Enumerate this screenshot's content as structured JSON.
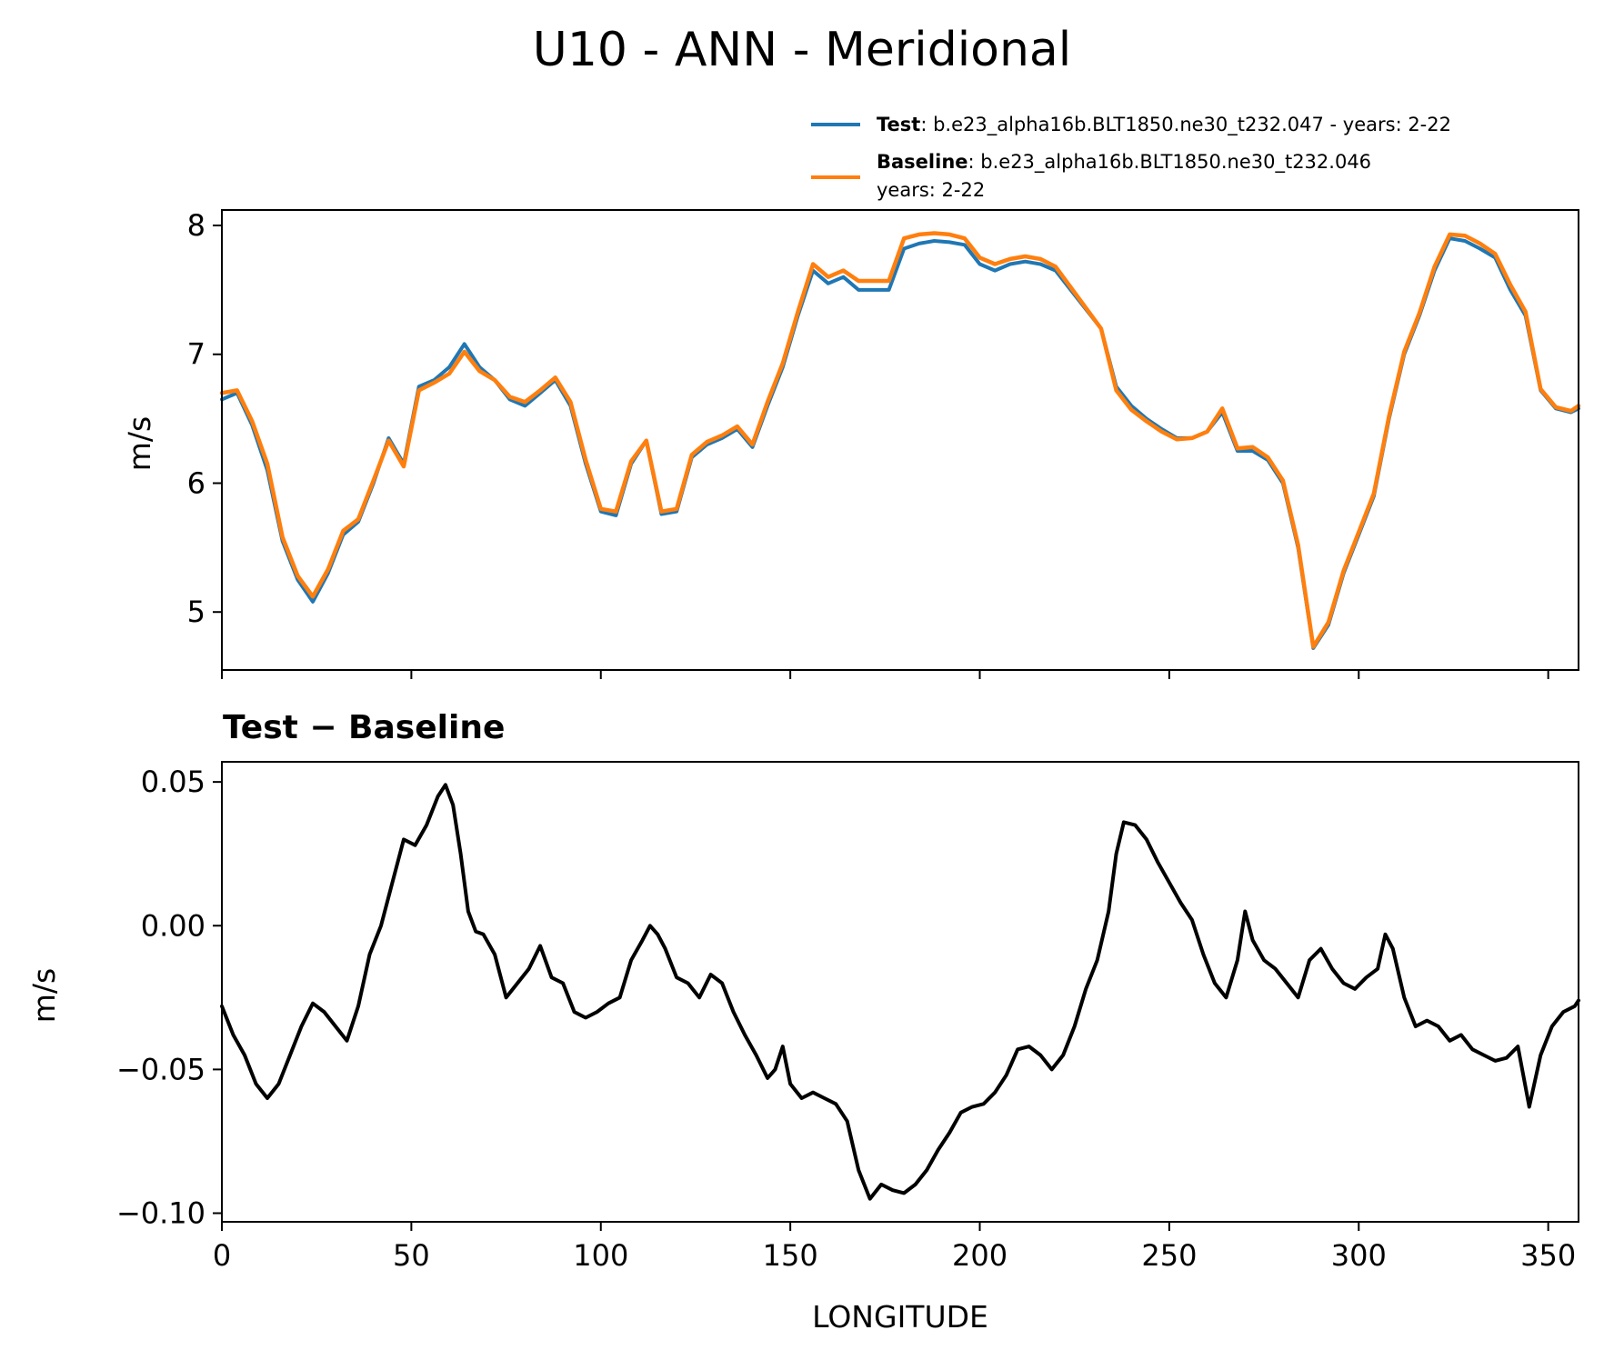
{
  "figure": {
    "title": "U10 - ANN - Meridional"
  },
  "legend": {
    "entries": [
      {
        "bold": "Test",
        "text": ": b.e23_alpha16b.BLT1850.ne30_t232.047 - years: 2-22",
        "line2": "",
        "color": "#1f77b4"
      },
      {
        "bold": "Baseline",
        "text": ": b.e23_alpha16b.BLT1850.ne30_t232.046",
        "line2": "years: 2-22",
        "color": "#ff7f0e"
      }
    ]
  },
  "chart_data": [
    {
      "type": "line",
      "title": "",
      "xlabel": "",
      "ylabel": "m/s",
      "xlim": [
        0,
        358
      ],
      "ylim": [
        4.55,
        8.12
      ],
      "xticks": [
        0,
        50,
        100,
        150,
        200,
        250,
        300,
        350
      ],
      "yticks": [
        5,
        6,
        7,
        8
      ],
      "ytick_labels": [
        "5",
        "6",
        "7",
        "8"
      ],
      "grid": false,
      "series": [
        {
          "name": "Test",
          "color": "#1f77b4",
          "x": [
            0,
            4,
            8,
            12,
            16,
            20,
            24,
            28,
            32,
            36,
            40,
            44,
            48,
            52,
            56,
            60,
            64,
            68,
            72,
            76,
            80,
            84,
            88,
            92,
            96,
            100,
            104,
            108,
            112,
            116,
            120,
            124,
            128,
            132,
            136,
            140,
            144,
            148,
            152,
            156,
            160,
            164,
            168,
            172,
            176,
            180,
            184,
            188,
            192,
            196,
            200,
            204,
            208,
            212,
            216,
            220,
            224,
            228,
            232,
            236,
            240,
            244,
            248,
            252,
            256,
            260,
            264,
            268,
            272,
            276,
            280,
            284,
            288,
            292,
            296,
            300,
            304,
            308,
            312,
            316,
            320,
            324,
            328,
            332,
            336,
            340,
            344,
            348,
            352,
            356,
            358
          ],
          "y": [
            6.65,
            6.7,
            6.45,
            6.1,
            5.55,
            5.25,
            5.08,
            5.3,
            5.6,
            5.7,
            6.0,
            6.35,
            6.15,
            6.75,
            6.8,
            6.9,
            7.08,
            6.9,
            6.8,
            6.65,
            6.6,
            6.7,
            6.8,
            6.6,
            6.15,
            5.78,
            5.75,
            6.15,
            6.33,
            5.76,
            5.78,
            6.2,
            6.3,
            6.35,
            6.42,
            6.28,
            6.6,
            6.9,
            7.3,
            7.65,
            7.55,
            7.6,
            7.5,
            7.5,
            7.5,
            7.82,
            7.86,
            7.88,
            7.87,
            7.85,
            7.7,
            7.65,
            7.7,
            7.72,
            7.7,
            7.65,
            7.5,
            7.35,
            7.2,
            6.75,
            6.6,
            6.5,
            6.42,
            6.35,
            6.35,
            6.4,
            6.55,
            6.25,
            6.25,
            6.18,
            6.0,
            5.5,
            4.72,
            4.9,
            5.3,
            5.6,
            5.9,
            6.5,
            7.0,
            7.3,
            7.65,
            7.9,
            7.88,
            7.82,
            7.75,
            7.5,
            7.3,
            6.72,
            6.58,
            6.55,
            6.58
          ]
        },
        {
          "name": "Baseline",
          "color": "#ff7f0e",
          "x": [
            0,
            4,
            8,
            12,
            16,
            20,
            24,
            28,
            32,
            36,
            40,
            44,
            48,
            52,
            56,
            60,
            64,
            68,
            72,
            76,
            80,
            84,
            88,
            92,
            96,
            100,
            104,
            108,
            112,
            116,
            120,
            124,
            128,
            132,
            136,
            140,
            144,
            148,
            152,
            156,
            160,
            164,
            168,
            172,
            176,
            180,
            184,
            188,
            192,
            196,
            200,
            204,
            208,
            212,
            216,
            220,
            224,
            228,
            232,
            236,
            240,
            244,
            248,
            252,
            256,
            260,
            264,
            268,
            272,
            276,
            280,
            284,
            288,
            292,
            296,
            300,
            304,
            308,
            312,
            316,
            320,
            324,
            328,
            332,
            336,
            340,
            344,
            348,
            352,
            356,
            358
          ],
          "y": [
            6.7,
            6.72,
            6.48,
            6.15,
            5.58,
            5.28,
            5.12,
            5.33,
            5.63,
            5.72,
            6.02,
            6.33,
            6.13,
            6.72,
            6.78,
            6.85,
            7.02,
            6.87,
            6.8,
            6.67,
            6.63,
            6.72,
            6.82,
            6.63,
            6.18,
            5.8,
            5.78,
            6.17,
            6.33,
            5.78,
            5.8,
            6.22,
            6.32,
            6.37,
            6.44,
            6.3,
            6.63,
            6.93,
            7.33,
            7.7,
            7.6,
            7.65,
            7.57,
            7.57,
            7.57,
            7.9,
            7.93,
            7.94,
            7.93,
            7.9,
            7.75,
            7.7,
            7.74,
            7.76,
            7.74,
            7.68,
            7.52,
            7.36,
            7.2,
            6.72,
            6.57,
            6.48,
            6.4,
            6.34,
            6.35,
            6.4,
            6.58,
            6.27,
            6.28,
            6.2,
            6.02,
            5.52,
            4.73,
            4.92,
            5.32,
            5.62,
            5.92,
            6.52,
            7.02,
            7.32,
            7.68,
            7.93,
            7.92,
            7.86,
            7.78,
            7.54,
            7.33,
            6.73,
            6.59,
            6.56,
            6.6
          ]
        }
      ]
    },
    {
      "type": "line",
      "title": "Test − Baseline",
      "xlabel": "LONGITUDE",
      "ylabel": "m/s",
      "xlim": [
        0,
        358
      ],
      "ylim": [
        -0.103,
        0.057
      ],
      "xticks": [
        0,
        50,
        100,
        150,
        200,
        250,
        300,
        350
      ],
      "yticks": [
        0.05,
        0.0,
        -0.05,
        -0.1
      ],
      "ytick_labels": [
        "0.05",
        "0.00",
        "−0.05",
        "−0.10"
      ],
      "grid": false,
      "series": [
        {
          "name": "Test − Baseline",
          "color": "#000000",
          "x": [
            0,
            3,
            6,
            9,
            12,
            15,
            18,
            21,
            24,
            27,
            30,
            33,
            36,
            39,
            42,
            45,
            48,
            51,
            54,
            57,
            59,
            61,
            63,
            65,
            67,
            69,
            72,
            75,
            78,
            81,
            84,
            87,
            90,
            93,
            96,
            99,
            102,
            105,
            108,
            111,
            113,
            115,
            117,
            120,
            123,
            126,
            129,
            132,
            135,
            138,
            141,
            144,
            146,
            148,
            150,
            153,
            156,
            159,
            162,
            165,
            168,
            171,
            174,
            177,
            180,
            183,
            186,
            189,
            192,
            195,
            198,
            201,
            204,
            207,
            210,
            213,
            216,
            219,
            222,
            225,
            228,
            231,
            234,
            236,
            238,
            241,
            244,
            247,
            250,
            253,
            256,
            259,
            262,
            265,
            268,
            270,
            272,
            275,
            278,
            281,
            284,
            287,
            290,
            293,
            296,
            299,
            302,
            305,
            307,
            309,
            312,
            315,
            318,
            321,
            324,
            327,
            330,
            333,
            336,
            339,
            342,
            345,
            348,
            351,
            354,
            357,
            358
          ],
          "y": [
            -0.028,
            -0.038,
            -0.045,
            -0.055,
            -0.06,
            -0.055,
            -0.045,
            -0.035,
            -0.027,
            -0.03,
            -0.035,
            -0.04,
            -0.028,
            -0.01,
            0.0,
            0.015,
            0.03,
            0.028,
            0.035,
            0.045,
            0.049,
            0.042,
            0.025,
            0.005,
            -0.002,
            -0.003,
            -0.01,
            -0.025,
            -0.02,
            -0.015,
            -0.007,
            -0.018,
            -0.02,
            -0.03,
            -0.032,
            -0.03,
            -0.027,
            -0.025,
            -0.012,
            -0.005,
            0.0,
            -0.003,
            -0.008,
            -0.018,
            -0.02,
            -0.025,
            -0.017,
            -0.02,
            -0.03,
            -0.038,
            -0.045,
            -0.053,
            -0.05,
            -0.042,
            -0.055,
            -0.06,
            -0.058,
            -0.06,
            -0.062,
            -0.068,
            -0.085,
            -0.095,
            -0.09,
            -0.092,
            -0.093,
            -0.09,
            -0.085,
            -0.078,
            -0.072,
            -0.065,
            -0.063,
            -0.062,
            -0.058,
            -0.052,
            -0.043,
            -0.042,
            -0.045,
            -0.05,
            -0.045,
            -0.035,
            -0.022,
            -0.012,
            0.005,
            0.025,
            0.036,
            0.035,
            0.03,
            0.022,
            0.015,
            0.008,
            0.002,
            -0.01,
            -0.02,
            -0.025,
            -0.012,
            0.005,
            -0.005,
            -0.012,
            -0.015,
            -0.02,
            -0.025,
            -0.012,
            -0.008,
            -0.015,
            -0.02,
            -0.022,
            -0.018,
            -0.015,
            -0.003,
            -0.008,
            -0.025,
            -0.035,
            -0.033,
            -0.035,
            -0.04,
            -0.038,
            -0.043,
            -0.045,
            -0.047,
            -0.046,
            -0.042,
            -0.063,
            -0.045,
            -0.035,
            -0.03,
            -0.028,
            -0.026
          ]
        }
      ]
    }
  ]
}
